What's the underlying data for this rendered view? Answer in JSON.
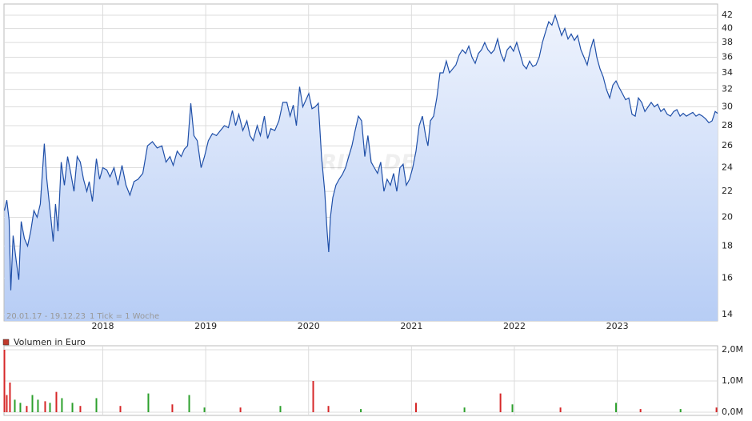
{
  "chart_data": [
    {
      "type": "line",
      "log_y": true,
      "grid": true,
      "watermark": "ARIVA.DE",
      "range_label": "20.01.17 - 19.12.23",
      "tick_label": "1 Tick = 1 Woche",
      "color": "#1f4fa8",
      "fill_top": "#eef3fd",
      "fill_bottom": "#b7cdf5",
      "xlim": [
        2017.04,
        2023.975
      ],
      "xticks": [
        2018,
        2019,
        2020,
        2021,
        2022,
        2023
      ],
      "ylim": [
        13.67,
        43.77
      ],
      "yticks": [
        14,
        16,
        18,
        20,
        22,
        24,
        26,
        28,
        30,
        32,
        34,
        36,
        38,
        40,
        42
      ],
      "x": [
        2017.044,
        2017.067,
        2017.09,
        2017.106,
        2017.129,
        2017.16,
        2017.184,
        2017.207,
        2017.238,
        2017.269,
        2017.3,
        2017.331,
        2017.362,
        2017.393,
        2017.432,
        2017.456,
        2017.495,
        2017.518,
        2017.541,
        2017.565,
        2017.596,
        2017.627,
        2017.658,
        2017.689,
        2017.72,
        2017.751,
        2017.782,
        2017.813,
        2017.845,
        2017.868,
        2017.899,
        2017.938,
        2017.969,
        2018.0,
        2018.039,
        2018.07,
        2018.109,
        2018.148,
        2018.187,
        2018.226,
        2018.264,
        2018.303,
        2018.342,
        2018.389,
        2018.435,
        2018.482,
        2018.529,
        2018.575,
        2018.614,
        2018.653,
        2018.684,
        2018.723,
        2018.762,
        2018.793,
        2018.824,
        2018.855,
        2018.886,
        2018.918,
        2018.956,
        2018.988,
        2019.026,
        2019.065,
        2019.104,
        2019.143,
        2019.182,
        2019.221,
        2019.26,
        2019.291,
        2019.322,
        2019.361,
        2019.4,
        2019.431,
        2019.462,
        2019.501,
        2019.532,
        2019.571,
        2019.602,
        2019.633,
        2019.672,
        2019.711,
        2019.75,
        2019.789,
        2019.82,
        2019.851,
        2019.882,
        2019.913,
        2019.944,
        2019.975,
        2020.002,
        2020.033,
        2020.064,
        2020.095,
        2020.126,
        2020.157,
        2020.18,
        2020.196,
        2020.212,
        2020.235,
        2020.266,
        2020.297,
        2020.328,
        2020.359,
        2020.39,
        2020.421,
        2020.452,
        2020.484,
        2020.515,
        2020.546,
        2020.577,
        2020.608,
        2020.639,
        2020.67,
        2020.701,
        2020.732,
        2020.763,
        2020.795,
        2020.826,
        2020.857,
        2020.888,
        2020.919,
        2020.95,
        2020.981,
        2021.012,
        2021.044,
        2021.075,
        2021.106,
        2021.137,
        2021.16,
        2021.184,
        2021.215,
        2021.246,
        2021.277,
        2021.308,
        2021.339,
        2021.37,
        2021.401,
        2021.432,
        2021.464,
        2021.495,
        2021.526,
        2021.557,
        2021.588,
        2021.619,
        2021.65,
        2021.681,
        2021.712,
        2021.743,
        2021.775,
        2021.806,
        2021.837,
        2021.868,
        2021.899,
        2021.93,
        2021.961,
        2021.992,
        2022.023,
        2022.054,
        2022.086,
        2022.117,
        2022.148,
        2022.179,
        2022.21,
        2022.241,
        2022.272,
        2022.303,
        2022.334,
        2022.365,
        2022.397,
        2022.428,
        2022.459,
        2022.49,
        2022.521,
        2022.552,
        2022.583,
        2022.614,
        2022.646,
        2022.677,
        2022.708,
        2022.739,
        2022.77,
        2022.801,
        2022.832,
        2022.863,
        2022.894,
        2022.926,
        2022.957,
        2022.988,
        2023.019,
        2023.05,
        2023.081,
        2023.112,
        2023.143,
        2023.174,
        2023.205,
        2023.237,
        2023.268,
        2023.299,
        2023.33,
        2023.361,
        2023.392,
        2023.423,
        2023.454,
        2023.485,
        2023.517,
        2023.548,
        2023.579,
        2023.61,
        2023.641,
        2023.672,
        2023.703,
        2023.734,
        2023.765,
        2023.796,
        2023.828,
        2023.859,
        2023.89,
        2023.921,
        2023.952,
        2023.975
      ],
      "values": [
        20.5,
        21.3,
        19.8,
        15.3,
        18.7,
        17,
        15.9,
        19.7,
        18.5,
        18,
        19,
        20.5,
        20,
        21,
        26.2,
        23,
        20,
        18.3,
        21,
        19,
        24.5,
        22.5,
        25,
        23.5,
        22,
        25,
        24.5,
        23,
        22,
        22.8,
        21.2,
        24.8,
        23,
        24,
        23.8,
        23.2,
        24,
        22.5,
        24.2,
        22.5,
        21.7,
        22.8,
        23,
        23.5,
        26,
        26.4,
        25.8,
        26,
        24.5,
        25,
        24.2,
        25.5,
        25,
        25.7,
        26,
        30.4,
        27,
        26.5,
        24,
        25,
        26.5,
        27.2,
        27,
        27.5,
        28,
        27.8,
        29.6,
        28,
        29.2,
        27.5,
        28.5,
        27,
        26.5,
        28,
        27,
        29,
        26.7,
        27.7,
        27.5,
        28.5,
        30.5,
        30.5,
        29,
        30.2,
        28,
        32.3,
        30,
        30.8,
        31.5,
        29.8,
        30,
        30.4,
        25,
        22,
        19,
        17.6,
        20,
        21.5,
        22.5,
        23,
        23.4,
        24,
        25,
        26,
        27.5,
        29,
        28.5,
        25,
        27,
        24.5,
        24,
        23.5,
        24.5,
        22,
        23,
        22.5,
        23.5,
        22,
        24,
        24.3,
        22.5,
        23,
        24,
        25.5,
        28,
        29,
        27,
        26,
        28.5,
        29,
        31,
        34,
        34,
        35.5,
        34,
        34.5,
        35,
        36.3,
        37,
        36.5,
        37.5,
        36,
        35.2,
        36.5,
        37,
        38,
        37,
        36.5,
        37,
        38.5,
        36.5,
        35.5,
        37,
        37.5,
        36.8,
        38,
        36.5,
        35,
        34.5,
        35.5,
        34.8,
        35,
        36,
        38,
        39.5,
        41,
        40.5,
        42,
        40.5,
        39,
        40,
        38.5,
        39.2,
        38.3,
        39,
        37,
        36,
        35,
        37,
        38.5,
        36,
        34.5,
        33.5,
        32,
        31,
        32.5,
        33,
        32.2,
        31.5,
        30.8,
        31,
        29.2,
        29,
        31,
        30.5,
        29.5,
        30,
        30.5,
        30,
        30.3,
        29.5,
        29.8,
        29.2,
        29,
        29.5,
        29.7,
        29,
        29.3,
        29,
        29.2,
        29.4,
        29,
        29.2,
        29,
        28.7,
        28.3,
        28.5,
        29.5,
        29.3
      ]
    },
    {
      "type": "bar",
      "legend": "Volumen in Euro",
      "legend_color": "#c0392b",
      "grid": true,
      "up_color": "#2ca02c",
      "down_color": "#d62728",
      "xlim": [
        2017.04,
        2023.975
      ],
      "xticks": [
        2018,
        2019,
        2020,
        2021,
        2022,
        2023
      ],
      "ylim": [
        0,
        2000000
      ],
      "yticks": [
        {
          "value": 0,
          "label": "0,0M"
        },
        {
          "value": 1000000,
          "label": "1,0M"
        },
        {
          "value": 2000000,
          "label": "2,0M"
        }
      ],
      "x": [
        2017.044,
        2017.067,
        2017.098,
        2017.145,
        2017.199,
        2017.261,
        2017.316,
        2017.37,
        2017.44,
        2017.487,
        2017.549,
        2017.603,
        2017.705,
        2017.782,
        2017.938,
        2018.171,
        2018.443,
        2018.676,
        2018.84,
        2018.988,
        2019.338,
        2019.726,
        2020.045,
        2020.193,
        2020.508,
        2021.044,
        2021.515,
        2021.865,
        2021.981,
        2022.448,
        2022.988,
        2023.226,
        2023.615,
        2023.964
      ],
      "values": [
        2000000,
        550000,
        950000,
        400000,
        300000,
        200000,
        550000,
        400000,
        350000,
        300000,
        650000,
        450000,
        300000,
        200000,
        450000,
        200000,
        600000,
        250000,
        550000,
        150000,
        150000,
        200000,
        1000000,
        200000,
        100000,
        300000,
        150000,
        600000,
        250000,
        150000,
        300000,
        100000,
        100000,
        150000
      ],
      "direction": [
        "down",
        "down",
        "down",
        "up",
        "up",
        "down",
        "up",
        "up",
        "down",
        "up",
        "down",
        "up",
        "up",
        "down",
        "up",
        "down",
        "up",
        "down",
        "up",
        "up",
        "down",
        "up",
        "down",
        "down",
        "up",
        "down",
        "up",
        "down",
        "up",
        "down",
        "up",
        "down",
        "up",
        "down"
      ]
    }
  ]
}
